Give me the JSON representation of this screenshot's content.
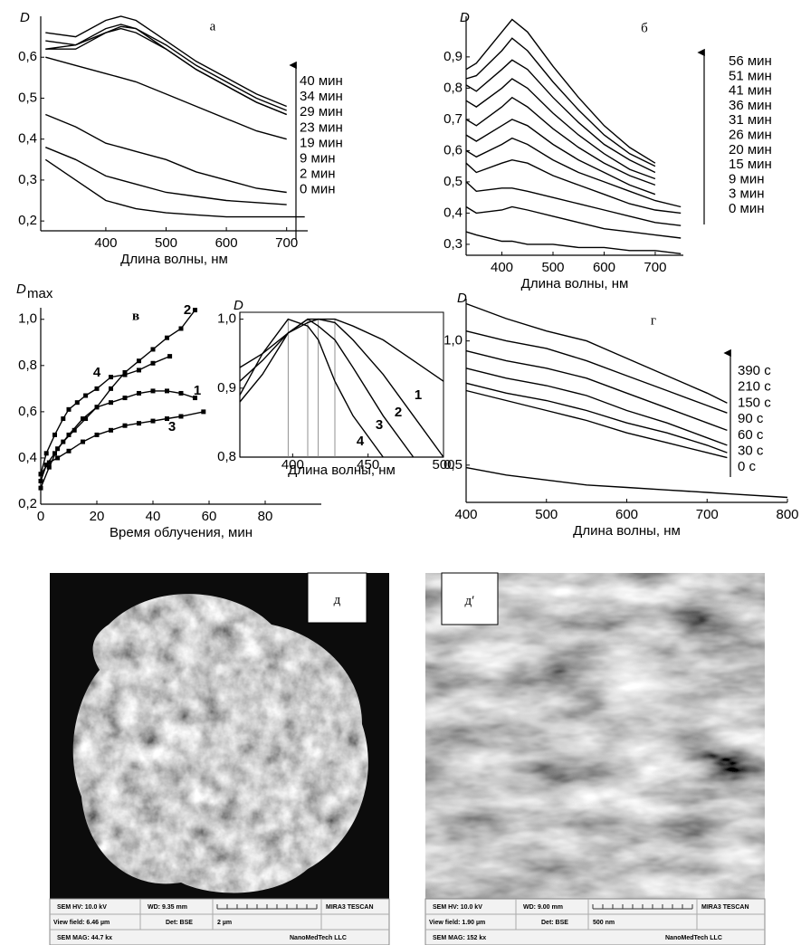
{
  "chart_data": [
    {
      "type": "line",
      "title": "а",
      "y_label": "D",
      "x_label": "Длина волны, нм",
      "color": "#000000",
      "x": [
        300,
        350,
        400,
        425,
        450,
        500,
        550,
        600,
        650,
        700,
        730
      ],
      "series": [
        {
          "name": "0 мин",
          "values": [
            0.35,
            0.3,
            0.25,
            0.24,
            0.23,
            0.22,
            0.215,
            0.21,
            0.21,
            0.21,
            0.21
          ]
        },
        {
          "name": "2 мин",
          "values": [
            0.38,
            0.35,
            0.31,
            0.3,
            0.29,
            0.27,
            0.26,
            0.25,
            0.245,
            0.24,
            null
          ]
        },
        {
          "name": "9 мин",
          "values": [
            0.46,
            0.43,
            0.39,
            0.38,
            0.37,
            0.35,
            0.32,
            0.3,
            0.28,
            0.27,
            null
          ]
        },
        {
          "name": "19 мин",
          "values": [
            0.6,
            0.58,
            0.56,
            0.55,
            0.54,
            0.51,
            0.48,
            0.45,
            0.42,
            0.4,
            null
          ]
        },
        {
          "name": "23 мин",
          "values": [
            0.62,
            0.63,
            0.66,
            0.67,
            0.66,
            0.62,
            0.57,
            0.53,
            0.49,
            0.46,
            null
          ]
        },
        {
          "name": "29 мин",
          "values": [
            0.62,
            0.62,
            0.66,
            0.675,
            0.67,
            0.62,
            0.57,
            0.53,
            0.49,
            0.46,
            null
          ]
        },
        {
          "name": "34 мин",
          "values": [
            0.64,
            0.63,
            0.67,
            0.68,
            0.67,
            0.63,
            0.58,
            0.54,
            0.5,
            0.47,
            null
          ]
        },
        {
          "name": "40 мин",
          "values": [
            0.66,
            0.65,
            0.69,
            0.7,
            0.69,
            0.64,
            0.59,
            0.55,
            0.51,
            0.48,
            null
          ]
        }
      ],
      "xlim": [
        292,
        735
      ],
      "ylim": [
        0.176,
        0.7
      ],
      "xticks": [
        400,
        500,
        600,
        700
      ],
      "yticks": [
        {
          "value": 0.2,
          "label": "0,2"
        },
        {
          "value": 0.3,
          "label": "0,3"
        },
        {
          "value": 0.4,
          "label": "0,4"
        },
        {
          "value": 0.5,
          "label": "0,5"
        },
        {
          "value": 0.6,
          "label": "0,6"
        }
      ]
    },
    {
      "type": "line",
      "title": "б",
      "y_label": "D",
      "x_label": "Длина волны, нм",
      "color": "#000000",
      "x": [
        330,
        350,
        400,
        420,
        450,
        500,
        550,
        600,
        650,
        700,
        750
      ],
      "series": [
        {
          "name": "0 мин",
          "values": [
            0.34,
            0.33,
            0.31,
            0.31,
            0.3,
            0.3,
            0.29,
            0.29,
            0.28,
            0.28,
            0.27
          ]
        },
        {
          "name": "3 мин",
          "values": [
            0.42,
            0.4,
            0.41,
            0.42,
            0.41,
            0.39,
            0.37,
            0.35,
            0.34,
            0.33,
            0.32
          ]
        },
        {
          "name": "9 мин",
          "values": [
            0.5,
            0.47,
            0.48,
            0.48,
            0.47,
            0.45,
            0.43,
            0.41,
            0.39,
            0.37,
            0.36
          ]
        },
        {
          "name": "15 мин",
          "values": [
            0.56,
            0.53,
            0.56,
            0.57,
            0.56,
            0.52,
            0.49,
            0.46,
            0.43,
            0.41,
            0.4
          ]
        },
        {
          "name": "20 мин",
          "values": [
            0.6,
            0.58,
            0.62,
            0.64,
            0.62,
            0.57,
            0.53,
            0.5,
            0.47,
            0.44,
            0.42
          ]
        },
        {
          "name": "26 мин",
          "values": [
            0.65,
            0.63,
            0.68,
            0.7,
            0.68,
            0.62,
            0.57,
            0.53,
            0.49,
            0.46,
            null
          ]
        },
        {
          "name": "31 мин",
          "values": [
            0.7,
            0.68,
            0.74,
            0.77,
            0.74,
            0.67,
            0.61,
            0.56,
            0.52,
            0.49,
            null
          ]
        },
        {
          "name": "36 мин",
          "values": [
            0.76,
            0.74,
            0.8,
            0.83,
            0.8,
            0.72,
            0.65,
            0.59,
            0.54,
            0.51,
            null
          ]
        },
        {
          "name": "41 мин",
          "values": [
            0.81,
            0.79,
            0.86,
            0.89,
            0.86,
            0.77,
            0.69,
            0.62,
            0.57,
            0.53,
            null
          ]
        },
        {
          "name": "51 мин",
          "values": [
            0.83,
            0.84,
            0.92,
            0.96,
            0.92,
            0.82,
            0.73,
            0.65,
            0.59,
            0.55,
            null
          ]
        },
        {
          "name": "56 мин",
          "values": [
            0.86,
            0.88,
            0.98,
            1.02,
            0.98,
            0.87,
            0.77,
            0.68,
            0.61,
            0.56,
            null
          ]
        }
      ],
      "xlim": [
        330,
        755
      ],
      "ylim": [
        0.265,
        1.03
      ],
      "xticks": [
        400,
        500,
        600,
        700
      ],
      "yticks": [
        {
          "value": 0.3,
          "label": "0,3"
        },
        {
          "value": 0.4,
          "label": "0,4"
        },
        {
          "value": 0.5,
          "label": "0,5"
        },
        {
          "value": 0.6,
          "label": "0,6"
        },
        {
          "value": 0.7,
          "label": "0,7"
        },
        {
          "value": 0.8,
          "label": "0,8"
        },
        {
          "value": 0.9,
          "label": "0,9"
        }
      ]
    },
    {
      "type": "line",
      "title": "в",
      "y_label": "D",
      "y_label_sub": "max",
      "x_label": "Время облучения, мин",
      "color": "#000000",
      "marker": "square",
      "series": [
        {
          "name": "1",
          "x": [
            0,
            2,
            5,
            8,
            12,
            16,
            20,
            25,
            30,
            35,
            40,
            45,
            50,
            55
          ],
          "values": [
            0.3,
            0.37,
            0.42,
            0.47,
            0.52,
            0.57,
            0.62,
            0.64,
            0.66,
            0.68,
            0.69,
            0.69,
            0.68,
            0.66
          ]
        },
        {
          "name": "2",
          "x": [
            0,
            3,
            6,
            10,
            15,
            20,
            25,
            30,
            35,
            40,
            45,
            50,
            55
          ],
          "values": [
            0.27,
            0.36,
            0.44,
            0.5,
            0.57,
            0.62,
            0.7,
            0.77,
            0.82,
            0.87,
            0.92,
            0.96,
            1.04
          ]
        },
        {
          "name": "3",
          "x": [
            0,
            3,
            6,
            10,
            15,
            20,
            25,
            30,
            35,
            40,
            45,
            50,
            58
          ],
          "values": [
            0.33,
            0.38,
            0.4,
            0.43,
            0.47,
            0.5,
            0.52,
            0.54,
            0.55,
            0.56,
            0.57,
            0.58,
            0.6
          ]
        },
        {
          "name": "4",
          "x": [
            0,
            2,
            5,
            8,
            10,
            13,
            16,
            20,
            25,
            30,
            35,
            40,
            46
          ],
          "values": [
            0.33,
            0.42,
            0.5,
            0.57,
            0.61,
            0.64,
            0.67,
            0.7,
            0.75,
            0.76,
            0.78,
            0.81,
            0.84
          ]
        }
      ],
      "xlim": [
        0,
        100
      ],
      "ylim": [
        0.2,
        1.05
      ],
      "xticks": [
        0,
        20,
        40,
        60,
        80
      ],
      "yticks": [
        {
          "value": 0.2,
          "label": "0,2"
        },
        {
          "value": 0.4,
          "label": "0,4"
        },
        {
          "value": 0.6,
          "label": "0,6"
        },
        {
          "value": 0.8,
          "label": "0,8"
        },
        {
          "value": 1.0,
          "label": "1,0"
        }
      ],
      "inset": {
        "type": "line",
        "y_label": "D",
        "x_label": "Длина волны, нм",
        "color": "#000000",
        "x": [
          365,
          380,
          397,
          410,
          417,
          428,
          440,
          460,
          480,
          500
        ],
        "series": [
          {
            "name": "1",
            "values": [
              0.93,
              0.95,
              0.98,
              0.995,
              1.0,
              1.0,
              0.99,
              0.97,
              0.94,
              0.91
            ]
          },
          {
            "name": "2",
            "values": [
              0.91,
              0.94,
              0.98,
              1.0,
              1.0,
              0.995,
              0.97,
              0.92,
              0.86,
              0.8
            ]
          },
          {
            "name": "3",
            "values": [
              0.88,
              0.92,
              0.98,
              1.0,
              0.99,
              0.97,
              0.93,
              0.86,
              0.8,
              null
            ]
          },
          {
            "name": "4",
            "values": [
              0.89,
              0.95,
              1.0,
              0.99,
              0.97,
              0.91,
              0.86,
              0.8,
              null,
              null
            ]
          }
        ],
        "vlines": [
          397,
          410,
          417,
          428
        ],
        "xlim": [
          365,
          500
        ],
        "ylim": [
          0.8,
          1.01
        ],
        "xticks": [
          400,
          450,
          500
        ],
        "yticks": [
          {
            "value": 0.8,
            "label": "0,8"
          },
          {
            "value": 0.9,
            "label": "0,9"
          },
          {
            "value": 1.0,
            "label": "1,0"
          }
        ]
      }
    },
    {
      "type": "line",
      "title": "г",
      "y_label": "D",
      "x_label": "Длина волны, нм",
      "color": "#000000",
      "x": [
        400,
        450,
        500,
        550,
        600,
        650,
        700,
        725,
        800
      ],
      "series": [
        {
          "name": "0 с",
          "values": [
            0.49,
            0.46,
            0.44,
            0.42,
            0.41,
            0.4,
            0.39,
            0.385,
            0.37
          ]
        },
        {
          "name": "30 с",
          "values": [
            0.8,
            0.76,
            0.72,
            0.68,
            0.63,
            0.59,
            0.55,
            0.53,
            null
          ]
        },
        {
          "name": "60 с",
          "values": [
            0.83,
            0.79,
            0.76,
            0.72,
            0.67,
            0.63,
            0.58,
            0.55,
            null
          ]
        },
        {
          "name": "90 с",
          "values": [
            0.89,
            0.85,
            0.82,
            0.78,
            0.72,
            0.67,
            0.61,
            0.58,
            null
          ]
        },
        {
          "name": "150 с",
          "values": [
            0.96,
            0.92,
            0.89,
            0.85,
            0.79,
            0.73,
            0.67,
            0.64,
            null
          ]
        },
        {
          "name": "210 с",
          "values": [
            1.04,
            1.0,
            0.97,
            0.92,
            0.86,
            0.8,
            0.74,
            0.71,
            null
          ]
        },
        {
          "name": "390 с",
          "values": [
            1.15,
            1.09,
            1.04,
            1.0,
            0.93,
            0.86,
            0.79,
            0.75,
            null
          ]
        }
      ],
      "xlim": [
        400,
        800
      ],
      "ylim": [
        0.35,
        1.17
      ],
      "xticks": [
        400,
        500,
        600,
        700,
        800
      ],
      "yticks": [
        {
          "value": 0.5,
          "label": "0,5"
        },
        {
          "value": 1.0,
          "label": "1,0"
        }
      ]
    }
  ],
  "images": [
    {
      "label": "д",
      "info": {
        "hv": "SEM HV: 10.0 kV",
        "wd": "WD: 9.35 mm",
        "brand": "MIRA3 TESCAN",
        "field": "View field: 6.46 µm",
        "det": "Det: BSE",
        "scale": "2 µm",
        "mag": "SEM MAG: 44.7 kx",
        "lab": "NanoMedTech LLC"
      }
    },
    {
      "label": "д′",
      "info": {
        "hv": "SEM HV: 10.0 kV",
        "wd": "WD: 9.00 mm",
        "brand": "MIRA3 TESCAN",
        "field": "View field: 1.90 µm",
        "det": "Det: BSE",
        "scale": "500 nm",
        "mag": "SEM MAG: 152 kx",
        "lab": "NanoMedTech LLC"
      }
    }
  ]
}
